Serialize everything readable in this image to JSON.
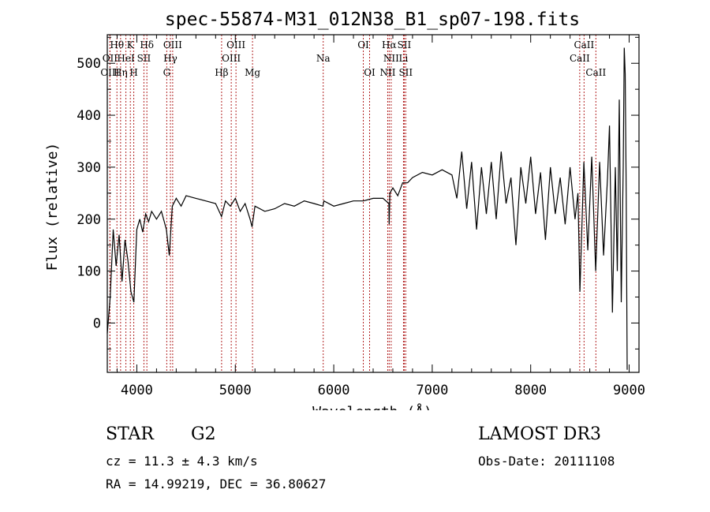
{
  "chart_data": {
    "type": "line",
    "title": "spec-55874-M31_012N38_B1_sp07-198.fits",
    "xlabel": "Wavelength (Å)",
    "ylabel": "Flux (relative)",
    "xlim": [
      3700,
      9100
    ],
    "ylim": [
      -95,
      555
    ],
    "x_ticks": [
      4000,
      5000,
      6000,
      7000,
      8000,
      9000
    ],
    "y_ticks": [
      0,
      100,
      200,
      300,
      400,
      500
    ],
    "grid": false,
    "series": [
      {
        "name": "flux",
        "color": "#000000",
        "x": [
          3700,
          3730,
          3760,
          3790,
          3820,
          3850,
          3880,
          3910,
          3940,
          3970,
          4000,
          4030,
          4060,
          4090,
          4120,
          4150,
          4200,
          4250,
          4300,
          4330,
          4360,
          4400,
          4450,
          4500,
          4600,
          4700,
          4800,
          4860,
          4900,
          4950,
          5000,
          5050,
          5100,
          5150,
          5170,
          5200,
          5300,
          5400,
          5500,
          5600,
          5700,
          5800,
          5890,
          5900,
          6000,
          6100,
          6200,
          6300,
          6400,
          6500,
          6560,
          6563,
          6570,
          6600,
          6650,
          6700,
          6750,
          6800,
          6900,
          7000,
          7100,
          7200,
          7250,
          7300,
          7350,
          7400,
          7450,
          7500,
          7550,
          7600,
          7650,
          7700,
          7750,
          7800,
          7850,
          7900,
          7950,
          8000,
          8050,
          8100,
          8150,
          8200,
          8250,
          8300,
          8350,
          8400,
          8450,
          8480,
          8500,
          8540,
          8580,
          8620,
          8660,
          8700,
          8740,
          8780,
          8800,
          8830,
          8860,
          8880,
          8900,
          8920,
          8940,
          8950,
          8960,
          8970,
          8980
        ],
        "values": [
          -20,
          50,
          180,
          110,
          170,
          80,
          160,
          120,
          60,
          40,
          180,
          200,
          175,
          210,
          195,
          215,
          200,
          215,
          180,
          130,
          225,
          240,
          225,
          245,
          240,
          235,
          230,
          205,
          235,
          225,
          240,
          215,
          230,
          200,
          185,
          225,
          215,
          220,
          230,
          225,
          235,
          230,
          225,
          235,
          225,
          230,
          235,
          235,
          240,
          240,
          230,
          190,
          250,
          260,
          245,
          270,
          270,
          280,
          290,
          285,
          295,
          285,
          240,
          330,
          220,
          310,
          180,
          300,
          210,
          310,
          200,
          330,
          230,
          280,
          150,
          300,
          230,
          320,
          210,
          290,
          160,
          300,
          210,
          280,
          190,
          300,
          200,
          250,
          60,
          310,
          140,
          320,
          100,
          310,
          130,
          280,
          380,
          20,
          300,
          100,
          430,
          40,
          300,
          530,
          480,
          250,
          -90
        ]
      }
    ],
    "lines_top": [
      {
        "label": "Hθ",
        "x": 3798
      },
      {
        "label": "K",
        "x": 3934
      },
      {
        "label": "Hδ",
        "x": 4102
      },
      {
        "label": "OIII",
        "x": 4364
      },
      {
        "label": "OIII",
        "x": 5007
      },
      {
        "label": "OI",
        "x": 6300
      },
      {
        "label": "Hα",
        "x": 6563
      },
      {
        "label": "SII",
        "x": 6716
      },
      {
        "label": "CaII",
        "x": 8542
      }
    ],
    "lines_mid": [
      {
        "label": "OII",
        "x": 3727
      },
      {
        "label": "HeI",
        "x": 3889
      },
      {
        "label": "SII",
        "x": 4072
      },
      {
        "label": "Hγ",
        "x": 4341
      },
      {
        "label": "OIII",
        "x": 4959
      },
      {
        "label": "Na",
        "x": 5893
      },
      {
        "label": "NII",
        "x": 6583
      },
      {
        "label": "Li",
        "x": 6708
      },
      {
        "label": "CaII",
        "x": 8498
      }
    ],
    "lines_low": [
      {
        "label": "OIII",
        "x": 3727
      },
      {
        "label": "Hη",
        "x": 3835
      },
      {
        "label": "H",
        "x": 3969
      },
      {
        "label": "G",
        "x": 4304
      },
      {
        "label": "Hβ",
        "x": 4861
      },
      {
        "label": "Mg",
        "x": 5175
      },
      {
        "label": "OI",
        "x": 6364
      },
      {
        "label": "NII",
        "x": 6548
      },
      {
        "label": "SII",
        "x": 6731
      },
      {
        "label": "CaII",
        "x": 8662
      }
    ]
  },
  "info": {
    "class": "STAR",
    "subclass": "G2",
    "survey": "LAMOST DR3",
    "cz": "cz = 11.3 ± 4.3 km/s",
    "obs_date": "Obs-Date: 20111108",
    "radec": "RA =  14.99219, DEC =  36.80627"
  }
}
